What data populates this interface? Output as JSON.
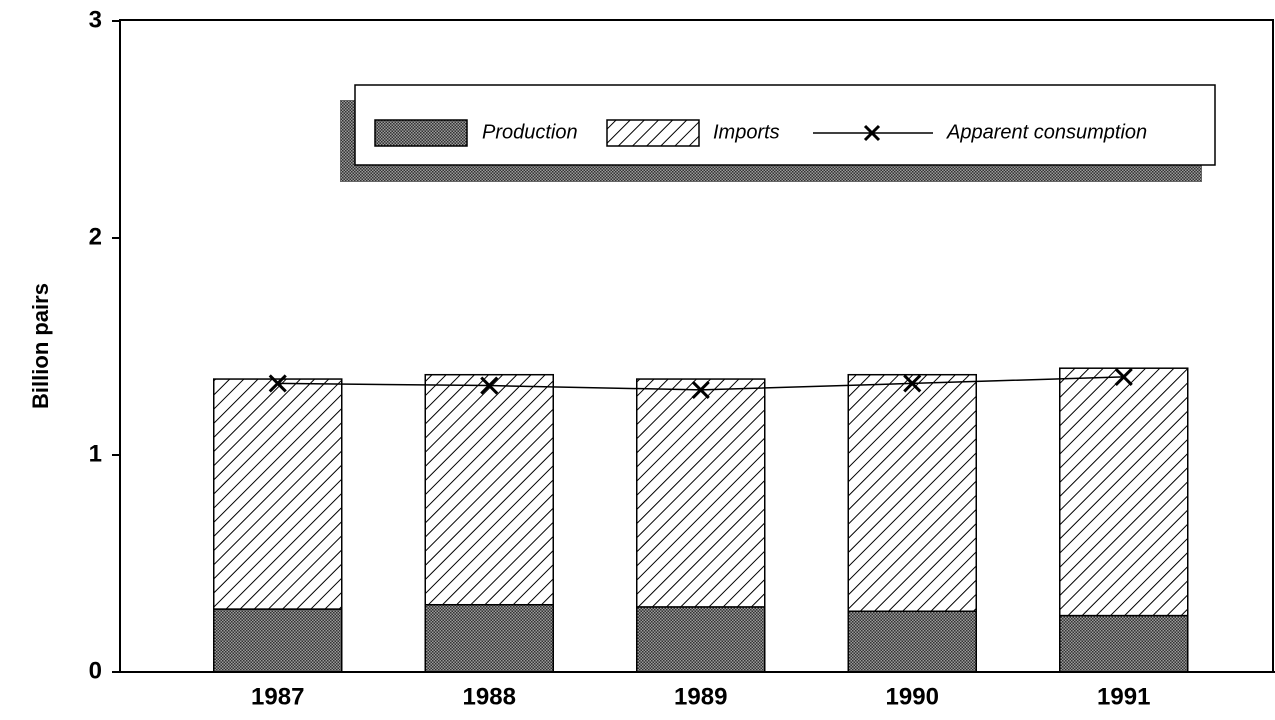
{
  "chart_data": {
    "type": "stacked-bar-line",
    "y_label": "Billion pairs",
    "categories": [
      "1987",
      "1988",
      "1989",
      "1990",
      "1991"
    ],
    "series": [
      {
        "name": "Production",
        "color": "#4d4d4d",
        "values": [
          0.29,
          0.31,
          0.3,
          0.28,
          0.26
        ]
      },
      {
        "name": "Imports",
        "color": "#000000",
        "values": [
          1.06,
          1.06,
          1.05,
          1.09,
          1.14
        ]
      },
      {
        "name": "Apparent consumption",
        "type": "line",
        "color": "#000000",
        "values": [
          1.33,
          1.32,
          1.3,
          1.33,
          1.36
        ]
      }
    ],
    "ylim": [
      0,
      3
    ],
    "yticks": [
      0,
      1,
      2,
      3
    ],
    "grid": false
  }
}
